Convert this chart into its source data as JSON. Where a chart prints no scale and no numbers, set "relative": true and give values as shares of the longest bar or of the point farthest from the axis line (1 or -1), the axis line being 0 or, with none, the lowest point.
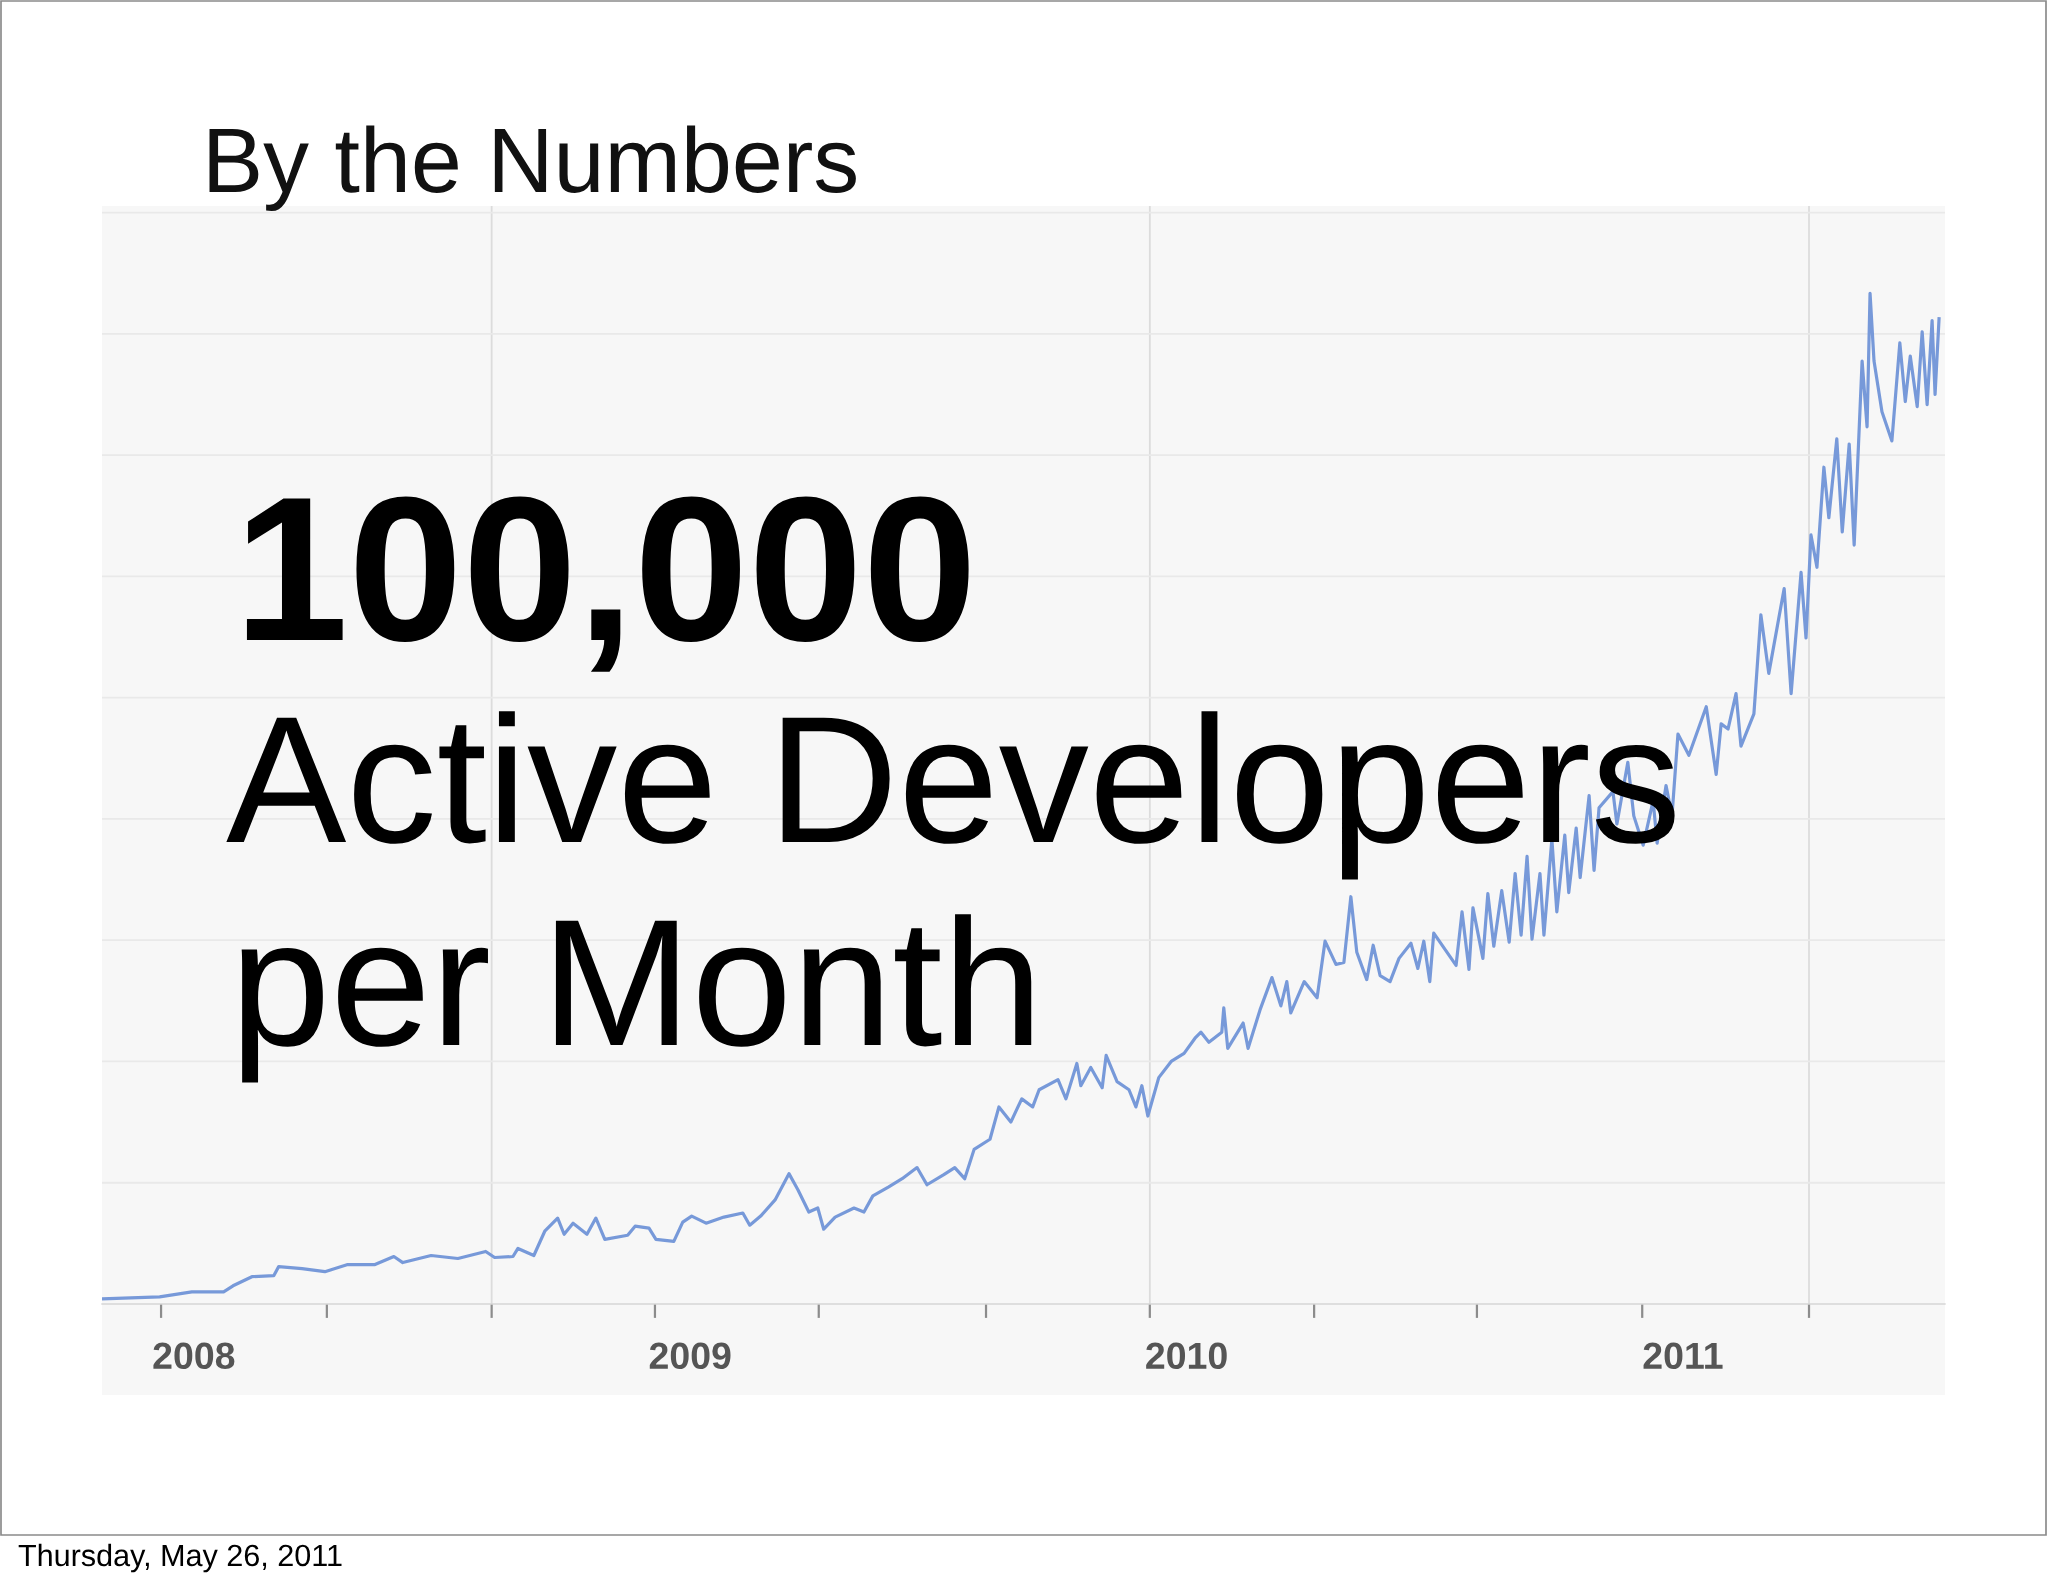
{
  "chart_data": {
    "type": "line",
    "title": "By the Numbers",
    "relative": true,
    "tick_labels": "x",
    "annotations": [
      "100,000",
      "Active Developers",
      "per Month",
      "Thursday, May 26, 2011"
    ],
    "xlim": [
      2007.815,
      2011.528
    ],
    "xticks": [
      2008,
      2009,
      2010,
      2011,
      {
        "value": 2007.934,
        "label": null
      },
      {
        "value": 2008.268,
        "label": null
      },
      {
        "value": 2008.6,
        "label": null
      },
      {
        "value": 2008.929,
        "label": null
      },
      {
        "value": 2009.259,
        "label": null
      },
      {
        "value": 2009.596,
        "label": null
      },
      {
        "value": 2009.926,
        "label": null
      },
      {
        "value": 2010.257,
        "label": null
      },
      {
        "value": 2010.585,
        "label": null
      },
      {
        "value": 2010.918,
        "label": null
      },
      {
        "value": 2011.254,
        "label": null
      }
    ],
    "ref_lines": [
      {
        "axis": "x",
        "value": 2008.6,
        "color": "#dcdcdc"
      },
      {
        "axis": "x",
        "value": 2009.926,
        "color": "#dcdcdc"
      },
      {
        "axis": "x",
        "value": 2011.254,
        "color": "#dcdcdc"
      },
      {
        "axis": "y",
        "value": 0.12,
        "color": "#e9e9e9"
      },
      {
        "axis": "y",
        "value": 0.24,
        "color": "#e9e9e9"
      },
      {
        "axis": "y",
        "value": 0.36,
        "color": "#e9e9e9"
      },
      {
        "axis": "y",
        "value": 0.48,
        "color": "#e9e9e9"
      },
      {
        "axis": "y",
        "value": 0.6,
        "color": "#e9e9e9"
      },
      {
        "axis": "y",
        "value": 0.72,
        "color": "#e9e9e9"
      },
      {
        "axis": "y",
        "value": 0.84,
        "color": "#e9e9e9"
      },
      {
        "axis": "y",
        "value": 0.96,
        "color": "#e9e9e9"
      },
      {
        "axis": "y",
        "value": 1.08,
        "color": "#e9e9e9"
      }
    ],
    "x": [
      2007.815,
      2007.931,
      2007.996,
      2008.06,
      2008.079,
      2008.117,
      2008.161,
      2008.171,
      2008.218,
      2008.264,
      2008.31,
      2008.365,
      2008.403,
      2008.421,
      2008.478,
      2008.532,
      2008.588,
      2008.606,
      2008.643,
      2008.653,
      2008.685,
      2008.707,
      2008.733,
      2008.746,
      2008.764,
      2008.792,
      2008.81,
      2008.828,
      2008.874,
      2008.889,
      2008.917,
      2008.931,
      2008.967,
      2008.985,
      2009.003,
      2009.032,
      2009.068,
      2009.106,
      2009.12,
      2009.142,
      2009.171,
      2009.199,
      2009.217,
      2009.239,
      2009.257,
      2009.269,
      2009.292,
      2009.33,
      2009.35,
      2009.368,
      2009.4,
      2009.427,
      2009.457,
      2009.477,
      2009.511,
      2009.533,
      2009.553,
      2009.572,
      2009.604,
      2009.622,
      2009.646,
      2009.668,
      2009.69,
      2009.703,
      2009.741,
      2009.757,
      2009.779,
      2009.787,
      2009.807,
      2009.83,
      2009.838,
      2009.86,
      2009.884,
      2009.898,
      2009.91,
      2009.922,
      2009.944,
      2009.969,
      2009.995,
      2010.017,
      2010.029,
      2010.045,
      2010.071,
      2010.075,
      2010.083,
      2010.114,
      2010.124,
      2010.148,
      2010.172,
      2010.19,
      2010.202,
      2010.21,
      2010.237,
      2010.263,
      2010.279,
      2010.301,
      2010.317,
      2010.331,
      2010.343,
      2010.363,
      2010.376,
      2010.39,
      2010.41,
      2010.428,
      2010.452,
      2010.466,
      2010.478,
      2010.49,
      2010.498,
      2010.543,
      2010.555,
      2010.569,
      2010.577,
      2010.597,
      2010.607,
      2010.619,
      2010.635,
      2010.65,
      2010.662,
      2010.674,
      2010.686,
      2010.696,
      2010.712,
      2010.72,
      2010.736,
      2010.746,
      2010.762,
      2010.77,
      2010.785,
      2010.793,
      2010.811,
      2010.821,
      2010.831,
      2010.859,
      2010.867,
      2010.889,
      2010.901,
      2010.92,
      2010.94,
      2010.948,
      2010.966,
      2010.978,
      2010.99,
      2011.012,
      2011.047,
      2011.067,
      2011.077,
      2011.091,
      2011.107,
      2011.117,
      2011.143,
      2011.157,
      2011.173,
      2011.204,
      2011.218,
      2011.238,
      2011.248,
      2011.258,
      2011.27,
      2011.284,
      2011.294,
      2011.31,
      2011.321,
      2011.335,
      2011.345,
      2011.361,
      2011.371,
      2011.377,
      2011.385,
      2011.401,
      2011.421,
      2011.437,
      2011.448,
      2011.458,
      2011.472,
      2011.482,
      2011.492,
      2011.502,
      2011.508,
      2011.516
    ],
    "series": [
      {
        "color": "#7799d9",
        "values": [
          0.005,
          0.007,
          0.012,
          0.012,
          0.018,
          0.027,
          0.028,
          0.037,
          0.035,
          0.032,
          0.039,
          0.039,
          0.047,
          0.041,
          0.048,
          0.045,
          0.052,
          0.046,
          0.047,
          0.055,
          0.048,
          0.072,
          0.085,
          0.069,
          0.08,
          0.069,
          0.085,
          0.064,
          0.068,
          0.077,
          0.075,
          0.064,
          0.062,
          0.081,
          0.087,
          0.08,
          0.086,
          0.09,
          0.078,
          0.087,
          0.103,
          0.129,
          0.113,
          0.091,
          0.095,
          0.074,
          0.086,
          0.095,
          0.091,
          0.107,
          0.116,
          0.124,
          0.135,
          0.118,
          0.128,
          0.135,
          0.124,
          0.153,
          0.163,
          0.195,
          0.18,
          0.203,
          0.195,
          0.212,
          0.222,
          0.203,
          0.238,
          0.216,
          0.234,
          0.214,
          0.246,
          0.22,
          0.212,
          0.195,
          0.216,
          0.186,
          0.224,
          0.24,
          0.248,
          0.263,
          0.269,
          0.259,
          0.269,
          0.293,
          0.253,
          0.278,
          0.253,
          0.291,
          0.323,
          0.295,
          0.319,
          0.288,
          0.319,
          0.303,
          0.359,
          0.336,
          0.338,
          0.403,
          0.348,
          0.321,
          0.355,
          0.325,
          0.319,
          0.342,
          0.357,
          0.332,
          0.359,
          0.319,
          0.367,
          0.335,
          0.388,
          0.331,
          0.392,
          0.342,
          0.406,
          0.354,
          0.409,
          0.358,
          0.426,
          0.365,
          0.443,
          0.361,
          0.426,
          0.365,
          0.46,
          0.388,
          0.464,
          0.407,
          0.471,
          0.422,
          0.503,
          0.429,
          0.491,
          0.507,
          0.475,
          0.536,
          0.483,
          0.454,
          0.498,
          0.456,
          0.513,
          0.483,
          0.564,
          0.543,
          0.591,
          0.524,
          0.574,
          0.569,
          0.604,
          0.552,
          0.584,
          0.682,
          0.624,
          0.708,
          0.604,
          0.724,
          0.659,
          0.761,
          0.729,
          0.828,
          0.778,
          0.856,
          0.764,
          0.851,
          0.751,
          0.933,
          0.868,
          1.0,
          0.933,
          0.883,
          0.854,
          0.951,
          0.893,
          0.938,
          0.888,
          0.962,
          0.89,
          0.973,
          0.9,
          0.975
        ]
      }
    ]
  }
}
